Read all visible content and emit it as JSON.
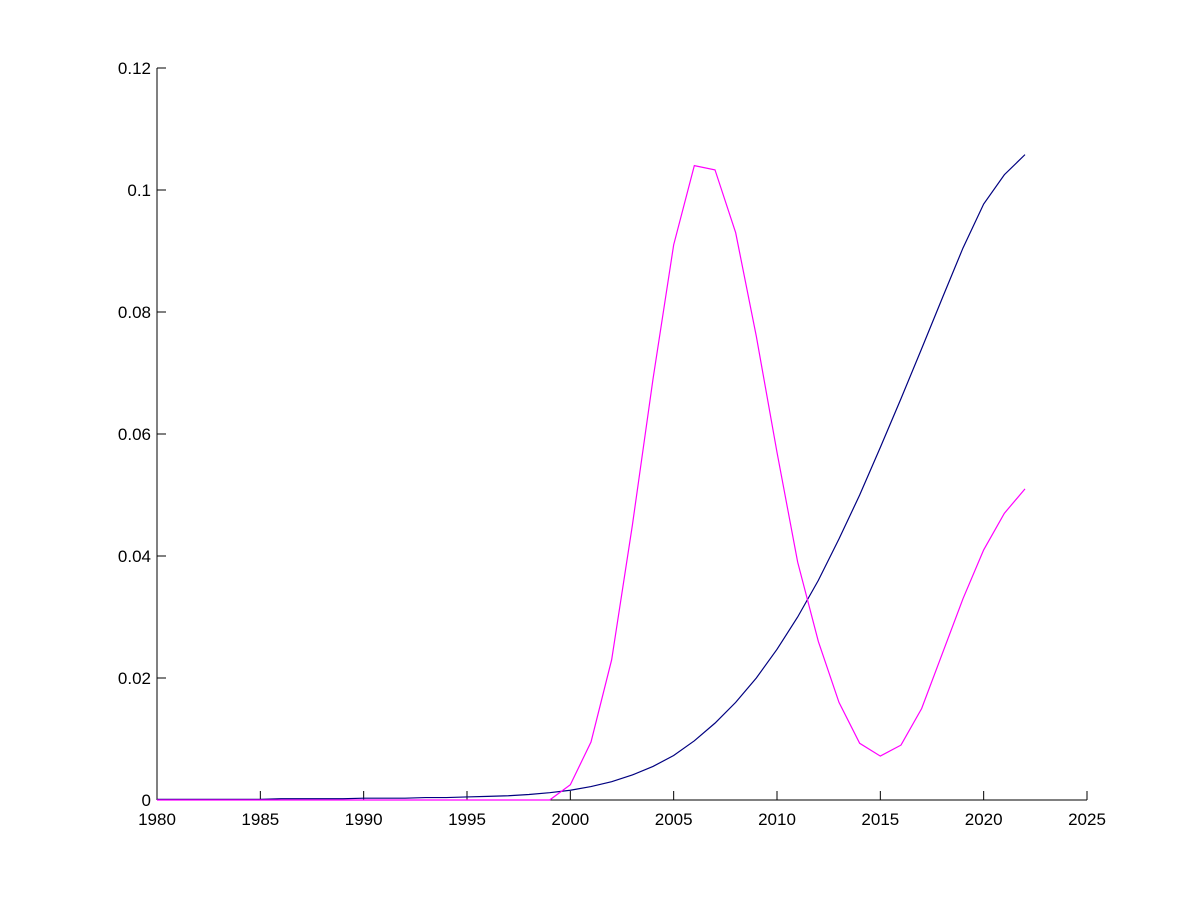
{
  "chart_data": {
    "type": "line",
    "x": [
      1980,
      1981,
      1982,
      1983,
      1984,
      1985,
      1986,
      1987,
      1988,
      1989,
      1990,
      1991,
      1992,
      1993,
      1994,
      1995,
      1996,
      1997,
      1998,
      1999,
      2000,
      2001,
      2002,
      2003,
      2004,
      2005,
      2006,
      2007,
      2008,
      2009,
      2010,
      2011,
      2012,
      2013,
      2014,
      2015,
      2016,
      2017,
      2018,
      2019,
      2020,
      2021,
      2022
    ],
    "series": [
      {
        "color": "#000080",
        "values": [
          0.0001,
          0.0001,
          0.0001,
          0.0001,
          0.0001,
          0.0001,
          0.0002,
          0.0002,
          0.0002,
          0.0002,
          0.0003,
          0.0003,
          0.0003,
          0.0004,
          0.0004,
          0.0005,
          0.0006,
          0.0007,
          0.0009,
          0.0012,
          0.0016,
          0.0022,
          0.003,
          0.0041,
          0.0055,
          0.0073,
          0.0097,
          0.0126,
          0.016,
          0.02,
          0.0247,
          0.03,
          0.036,
          0.0428,
          0.05,
          0.0578,
          0.0658,
          0.074,
          0.0823,
          0.0905,
          0.0977,
          0.1025,
          0.1058
        ]
      },
      {
        "color": "#ff00ff",
        "values": [
          0,
          0,
          0,
          0,
          0,
          0,
          0,
          0,
          0,
          0,
          0,
          0,
          0,
          0,
          0,
          0,
          0,
          0,
          0,
          0,
          0.0025,
          0.0095,
          0.023,
          0.045,
          0.069,
          0.091,
          0.104,
          0.1033,
          0.093,
          0.076,
          0.057,
          0.039,
          0.026,
          0.016,
          0.0093,
          0.0072,
          0.009,
          0.015,
          0.024,
          0.033,
          0.041,
          0.047,
          0.051
        ]
      }
    ],
    "xlim": [
      1980,
      2025
    ],
    "xticks": [
      1980,
      1985,
      1990,
      1995,
      2000,
      2005,
      2010,
      2015,
      2020,
      2025
    ],
    "ylim": [
      0,
      0.12
    ],
    "yticks": [
      0,
      0.02,
      0.04,
      0.06,
      0.08,
      0.1,
      0.12
    ]
  }
}
